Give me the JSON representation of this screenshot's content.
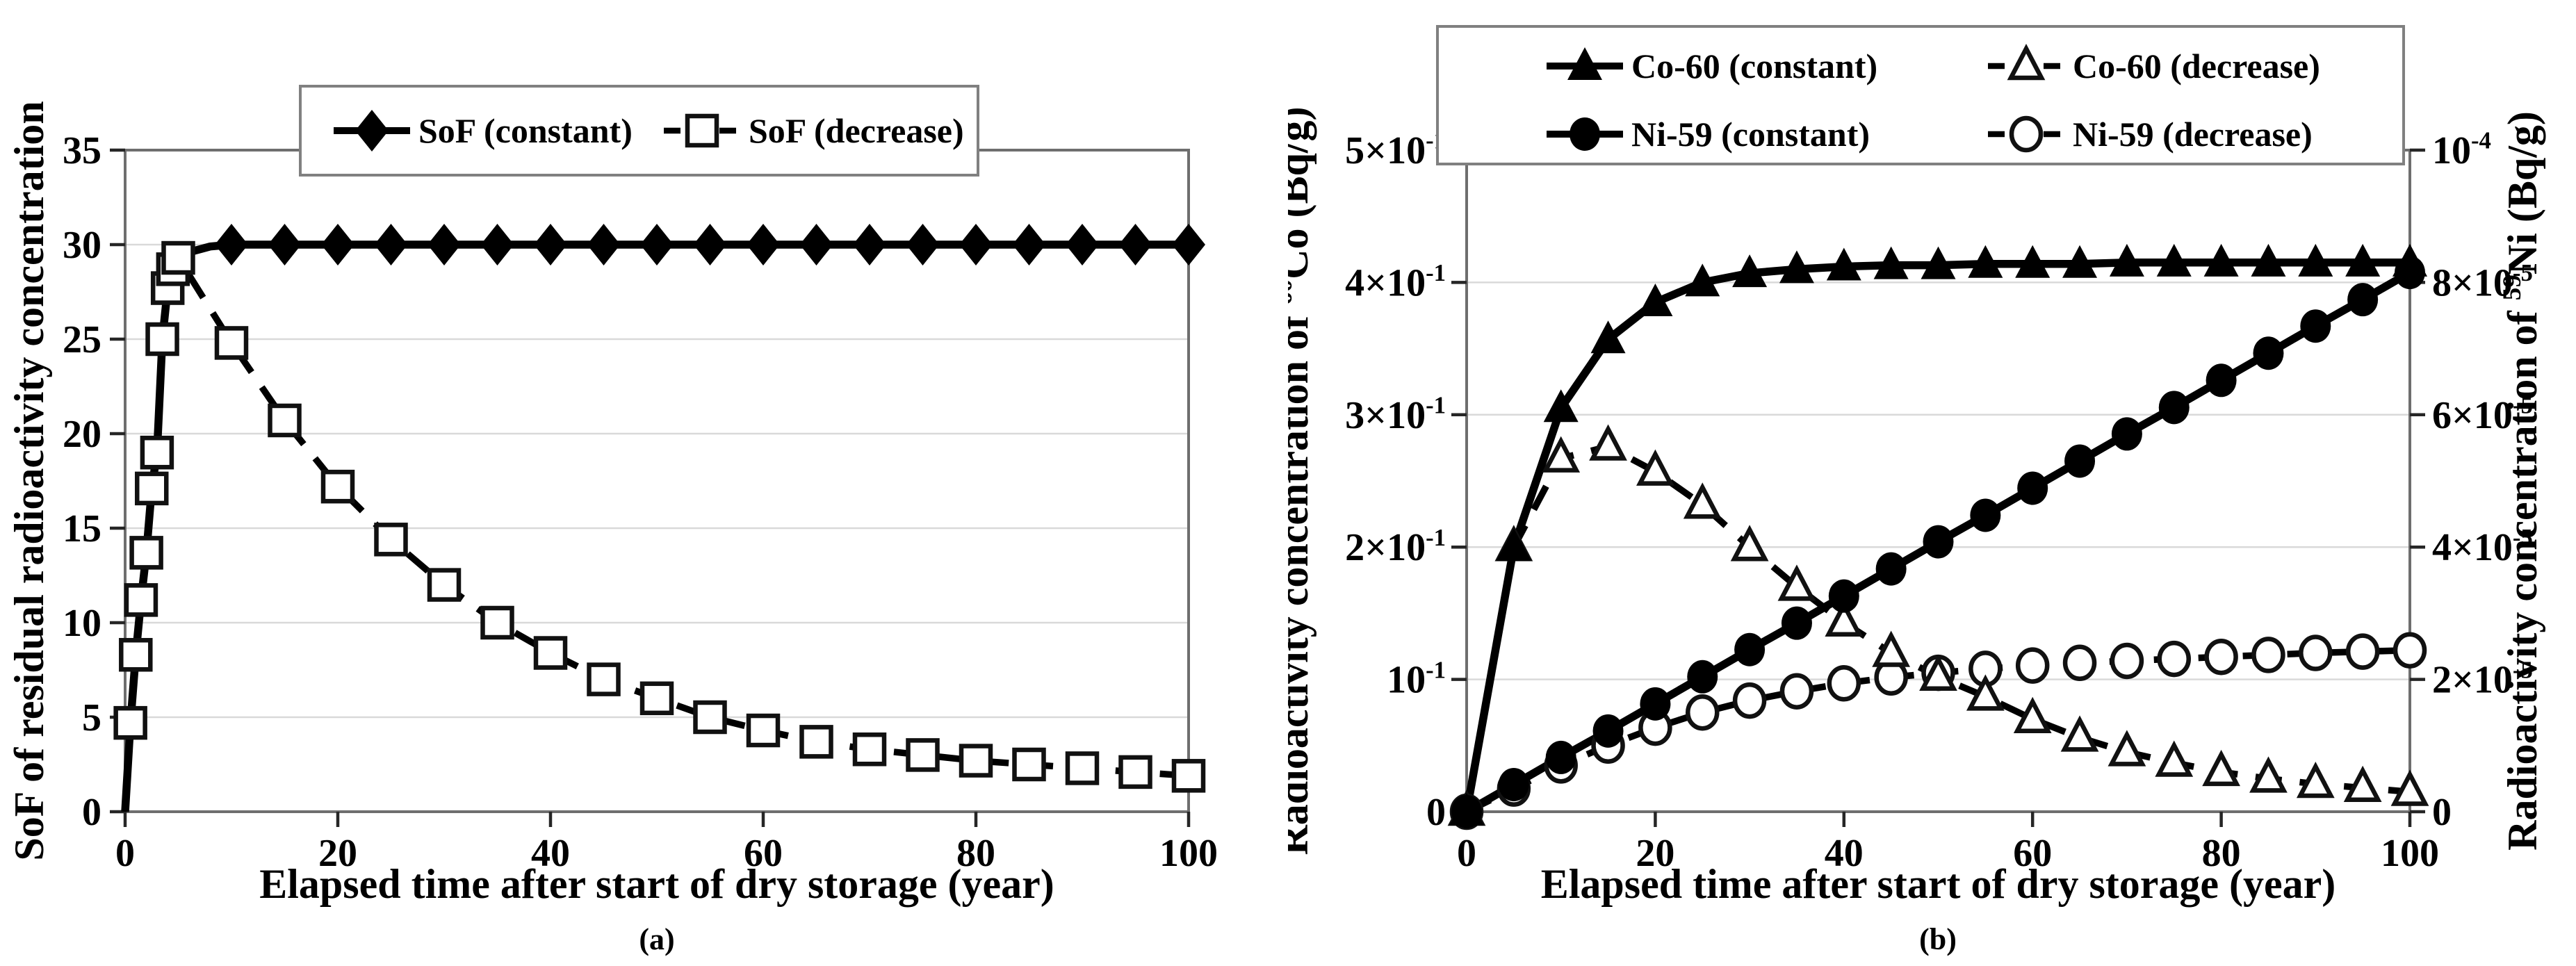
{
  "colors": {
    "line": "#000000",
    "border": "#6e6e6e",
    "gridline": "#d9d9d9",
    "tick": "#262626",
    "background": "#ffffff",
    "legend_border": "#808080"
  },
  "chart_data": [
    {
      "id": "a",
      "type": "line",
      "caption": "(a)",
      "x_axis": {
        "title": "Elapsed time after start of dry storage (year)",
        "range": [
          0,
          100
        ],
        "ticks": [
          0,
          20,
          40,
          60,
          80,
          100
        ],
        "grid": false
      },
      "y_axis": {
        "title": "SoF of residual radioactivity concentration",
        "range": [
          0,
          35
        ],
        "ticks": [
          0,
          5,
          10,
          15,
          20,
          25,
          30,
          35
        ],
        "gridlines": [
          5,
          10,
          15,
          20,
          25,
          30
        ],
        "grid": true
      },
      "legend": {
        "position": "top",
        "entries": [
          {
            "label": "SoF (constant)",
            "marker": "diamond-filled",
            "line": "solid"
          },
          {
            "label": "SoF (decrease)",
            "marker": "square-open",
            "line": "dashed"
          }
        ]
      },
      "series": [
        {
          "name": "SoF (decrease)",
          "axis": "left",
          "line": "dashed",
          "marker": "square-open",
          "points": [
            [
              0,
              0
            ],
            [
              0.5,
              4.7
            ],
            [
              1,
              8.3
            ],
            [
              1.5,
              11.2
            ],
            [
              2,
              13.7
            ],
            [
              2.5,
              17.1
            ],
            [
              3,
              19.0
            ],
            [
              3.5,
              25.0
            ],
            [
              4,
              27.7
            ],
            [
              4.5,
              28.7
            ],
            [
              5,
              29.3
            ],
            [
              10,
              24.8
            ],
            [
              15,
              20.7
            ],
            [
              20,
              17.2
            ],
            [
              25,
              14.4
            ],
            [
              30,
              12.0
            ],
            [
              35,
              10.0
            ],
            [
              40,
              8.4
            ],
            [
              45,
              7.0
            ],
            [
              50,
              6.0
            ],
            [
              55,
              5.0
            ],
            [
              60,
              4.3
            ],
            [
              65,
              3.7
            ],
            [
              70,
              3.3
            ],
            [
              75,
              3.0
            ],
            [
              80,
              2.7
            ],
            [
              85,
              2.5
            ],
            [
              90,
              2.3
            ],
            [
              95,
              2.1
            ],
            [
              100,
              1.9
            ]
          ],
          "markers_start": 1
        },
        {
          "name": "SoF (constant)",
          "axis": "left",
          "line": "solid",
          "marker": "diamond-filled",
          "points": [
            [
              0,
              0
            ],
            [
              0.5,
              4.7
            ],
            [
              1,
              8.3
            ],
            [
              1.5,
              11.2
            ],
            [
              2,
              13.7
            ],
            [
              2.5,
              17.1
            ],
            [
              3,
              19.0
            ],
            [
              3.5,
              25.0
            ],
            [
              4,
              27.7
            ],
            [
              4.5,
              28.7
            ],
            [
              5,
              29.3
            ],
            [
              6,
              29.6
            ],
            [
              8,
              29.9
            ],
            [
              10,
              30
            ],
            [
              15,
              30
            ],
            [
              20,
              30
            ],
            [
              25,
              30
            ],
            [
              30,
              30
            ],
            [
              35,
              30
            ],
            [
              40,
              30
            ],
            [
              45,
              30
            ],
            [
              50,
              30
            ],
            [
              55,
              30
            ],
            [
              60,
              30
            ],
            [
              65,
              30
            ],
            [
              70,
              30
            ],
            [
              75,
              30
            ],
            [
              80,
              30
            ],
            [
              85,
              30
            ],
            [
              90,
              30
            ],
            [
              95,
              30
            ],
            [
              100,
              30
            ]
          ],
          "marker_points": [
            [
              10,
              30
            ],
            [
              15,
              30
            ],
            [
              20,
              30
            ],
            [
              25,
              30
            ],
            [
              30,
              30
            ],
            [
              35,
              30
            ],
            [
              40,
              30
            ],
            [
              45,
              30
            ],
            [
              50,
              30
            ],
            [
              55,
              30
            ],
            [
              60,
              30
            ],
            [
              65,
              30
            ],
            [
              70,
              30
            ],
            [
              75,
              30
            ],
            [
              80,
              30
            ],
            [
              85,
              30
            ],
            [
              90,
              30
            ],
            [
              95,
              30
            ],
            [
              100,
              30
            ]
          ]
        }
      ]
    },
    {
      "id": "b",
      "type": "line",
      "caption": "(b)",
      "x_axis": {
        "title": "Elapsed time after start of dry storage (year)",
        "range": [
          0,
          100
        ],
        "ticks": [
          0,
          20,
          40,
          60,
          80,
          100
        ],
        "grid": false
      },
      "y_axis_left": {
        "title": "Radioactivity concentration of ^60^Co (Bq/g)",
        "range": [
          0,
          0.5
        ],
        "grid": true,
        "ticks": [
          {
            "v": 0.5,
            "label": "5×10^-1^"
          },
          {
            "v": 0.4,
            "label": "4×10^-1^"
          },
          {
            "v": 0.3,
            "label": "3×10^-1^"
          },
          {
            "v": 0.2,
            "label": "2×10^-1^"
          },
          {
            "v": 0.1,
            "label": "10^-1^"
          },
          {
            "v": 0,
            "label": "0"
          }
        ],
        "gridlines": [
          0.1,
          0.2,
          0.3,
          0.4
        ]
      },
      "y_axis_right": {
        "title": "Radioactivity concentration of ^59^Ni (Bq/g)",
        "range": [
          0,
          10
        ],
        "units": "1e-5 Bq/g",
        "ticks": [
          {
            "v": 10,
            "label": "10^-4^"
          },
          {
            "v": 8,
            "label": "8×10^-5^"
          },
          {
            "v": 6,
            "label": "6×10^-5^"
          },
          {
            "v": 4,
            "label": "4×10^-5^"
          },
          {
            "v": 2,
            "label": "2×10^-5^"
          },
          {
            "v": 0,
            "label": "0"
          }
        ]
      },
      "legend": {
        "position": "top",
        "entries": [
          {
            "label": "Co-60 (constant)",
            "marker": "triangle-filled",
            "line": "solid"
          },
          {
            "label": "Co-60 (decrease)",
            "marker": "triangle-open",
            "line": "dashed"
          },
          {
            "label": "Ni-59 (constant)",
            "marker": "circle-filled",
            "line": "solid"
          },
          {
            "label": "Ni-59 (decrease)",
            "marker": "circle-open",
            "line": "dashed"
          }
        ]
      },
      "series": [
        {
          "name": "Ni-59 (decrease)",
          "axis": "right",
          "line": "dashed",
          "marker": "circle-open",
          "points": [
            [
              0,
              0
            ],
            [
              5,
              0.35
            ],
            [
              10,
              0.7
            ],
            [
              15,
              1.0
            ],
            [
              20,
              1.27
            ],
            [
              25,
              1.5
            ],
            [
              30,
              1.68
            ],
            [
              35,
              1.82
            ],
            [
              40,
              1.94
            ],
            [
              45,
              2.03
            ],
            [
              50,
              2.1
            ],
            [
              55,
              2.16
            ],
            [
              60,
              2.21
            ],
            [
              65,
              2.25
            ],
            [
              70,
              2.28
            ],
            [
              75,
              2.31
            ],
            [
              80,
              2.34
            ],
            [
              85,
              2.37
            ],
            [
              90,
              2.4
            ],
            [
              95,
              2.42
            ],
            [
              100,
              2.44
            ]
          ]
        },
        {
          "name": "Co-60 (decrease)",
          "axis": "left",
          "line": "dashed",
          "marker": "triangle-open",
          "points": [
            [
              0,
              0
            ],
            [
              5,
              0.2
            ],
            [
              10,
              0.267
            ],
            [
              15,
              0.276
            ],
            [
              20,
              0.257
            ],
            [
              25,
              0.232
            ],
            [
              30,
              0.2
            ],
            [
              35,
              0.17
            ],
            [
              40,
              0.143
            ],
            [
              45,
              0.12
            ],
            [
              50,
              0.102
            ],
            [
              55,
              0.087
            ],
            [
              60,
              0.07
            ],
            [
              65,
              0.056
            ],
            [
              70,
              0.045
            ],
            [
              75,
              0.037
            ],
            [
              80,
              0.03
            ],
            [
              85,
              0.025
            ],
            [
              90,
              0.021
            ],
            [
              95,
              0.018
            ],
            [
              100,
              0.015
            ]
          ]
        },
        {
          "name": "Ni-59 (constant)",
          "axis": "right",
          "line": "solid",
          "marker": "circle-filled",
          "points": [
            [
              0,
              0
            ],
            [
              5,
              0.41
            ],
            [
              10,
              0.82
            ],
            [
              15,
              1.22
            ],
            [
              20,
              1.63
            ],
            [
              25,
              2.04
            ],
            [
              30,
              2.45
            ],
            [
              35,
              2.85
            ],
            [
              40,
              3.26
            ],
            [
              45,
              3.67
            ],
            [
              50,
              4.08
            ],
            [
              55,
              4.48
            ],
            [
              60,
              4.89
            ],
            [
              65,
              5.3
            ],
            [
              70,
              5.71
            ],
            [
              75,
              6.11
            ],
            [
              80,
              6.52
            ],
            [
              85,
              6.93
            ],
            [
              90,
              7.34
            ],
            [
              95,
              7.74
            ],
            [
              100,
              8.15
            ]
          ]
        },
        {
          "name": "Co-60 (constant)",
          "axis": "left",
          "line": "solid",
          "marker": "triangle-filled",
          "points": [
            [
              0,
              0
            ],
            [
              5,
              0.2
            ],
            [
              10,
              0.305
            ],
            [
              15,
              0.357
            ],
            [
              20,
              0.385
            ],
            [
              25,
              0.4
            ],
            [
              30,
              0.407
            ],
            [
              35,
              0.41
            ],
            [
              40,
              0.412
            ],
            [
              45,
              0.413
            ],
            [
              50,
              0.413
            ],
            [
              55,
              0.414
            ],
            [
              60,
              0.414
            ],
            [
              65,
              0.414
            ],
            [
              70,
              0.415
            ],
            [
              75,
              0.415
            ],
            [
              80,
              0.415
            ],
            [
              85,
              0.415
            ],
            [
              90,
              0.415
            ],
            [
              95,
              0.415
            ],
            [
              100,
              0.415
            ]
          ]
        }
      ]
    }
  ]
}
